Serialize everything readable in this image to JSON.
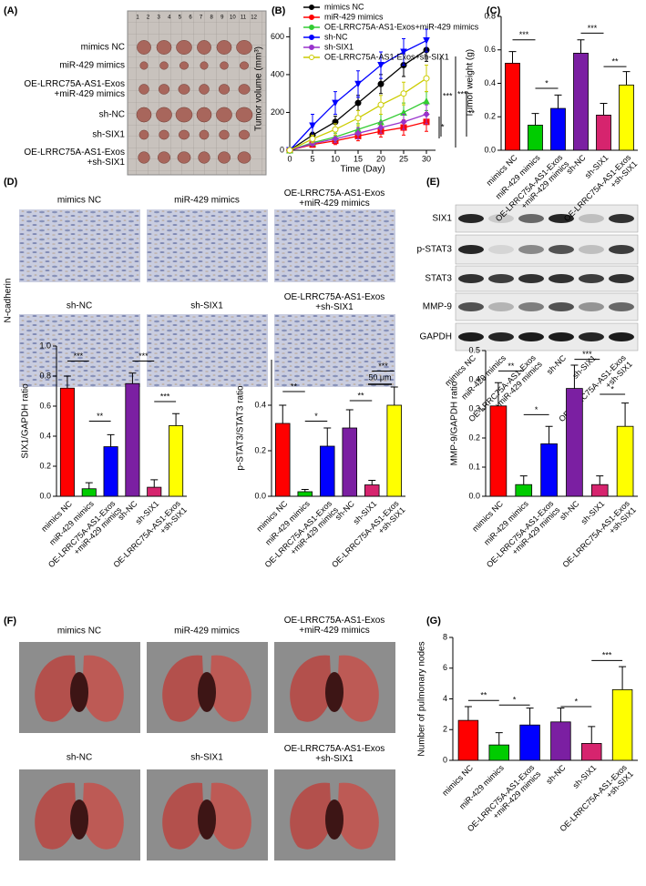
{
  "panel_labels": [
    "(A)",
    "(B)",
    "(C)",
    "(D)",
    "(E)",
    "(F)",
    "(G)"
  ],
  "panel_a": {
    "ruler": [
      1,
      2,
      3,
      4,
      5,
      6,
      7,
      8,
      9,
      10,
      11,
      12
    ],
    "rows": [
      "mimics NC",
      "miR-429 mimics",
      "OE-LRRC75A-AS1-Exos\n+miR-429 mimics",
      "sh-NC",
      "sh-SIX1",
      "OE-LRRC75A-AS1-Exos\n+sh-SIX1"
    ]
  },
  "panel_d": {
    "stain": "N-cadherin",
    "captions": [
      "mimics NC",
      "miR-429 mimics",
      "OE-LRRC75A-AS1-Exos\n+miR-429 mimics",
      "sh-NC",
      "sh-SIX1",
      "OE-LRRC75A-AS1-Exos\n+sh-SIX1"
    ],
    "scale_bar": "50 μm"
  },
  "panel_e": {
    "proteins": [
      "SIX1",
      "p-STAT3",
      "STAT3",
      "MMP-9",
      "GAPDH"
    ],
    "lanes": [
      "mimics NC",
      "miR-429 mimics",
      "OE-LRRC75A-AS1-Exos\n+miR-429 mimics",
      "sh-NC",
      "sh-SIX1",
      "OE-LRRC75A-AS1-Exos\n+sh-SIX1"
    ]
  },
  "panel_f": {
    "captions": [
      "mimics NC",
      "miR-429 mimics",
      "OE-LRRC75A-AS1-Exos\n+miR-429 mimics",
      "sh-NC",
      "sh-SIX1",
      "OE-LRRC75A-AS1-Exos\n+sh-SIX1"
    ]
  },
  "chart_data": [
    {
      "type": "line",
      "xlabel": "Time (Day)",
      "ylabel": "Tumor volume (mm³)",
      "x": [
        0,
        5,
        10,
        15,
        20,
        25,
        30
      ],
      "xlim": [
        0,
        32
      ],
      "xticks": [
        0,
        5,
        10,
        15,
        20,
        25,
        30
      ],
      "ylim": [
        0,
        650
      ],
      "yticks": [
        0,
        200,
        400,
        600
      ],
      "series": [
        {
          "name": "mimics NC",
          "color": "#000000",
          "marker": "circle",
          "values": [
            0,
            80,
            150,
            250,
            350,
            450,
            530
          ],
          "errors": [
            0,
            15,
            30,
            40,
            50,
            60,
            60
          ]
        },
        {
          "name": "miR-429 mimics",
          "color": "#ff0000",
          "marker": "square",
          "values": [
            0,
            30,
            50,
            75,
            100,
            120,
            150
          ],
          "errors": [
            0,
            10,
            20,
            25,
            30,
            40,
            50
          ]
        },
        {
          "name": "OE-LRRC75A-AS1-Exos+miR-429 mimics",
          "color": "#33cc33",
          "marker": "triangle",
          "values": [
            0,
            40,
            70,
            110,
            150,
            200,
            260
          ],
          "errors": [
            0,
            10,
            20,
            30,
            40,
            50,
            50
          ]
        },
        {
          "name": "sh-NC",
          "color": "#0000ff",
          "marker": "triangle-down",
          "values": [
            0,
            130,
            250,
            350,
            450,
            520,
            580
          ],
          "errors": [
            0,
            60,
            60,
            70,
            70,
            70,
            60
          ]
        },
        {
          "name": "sh-SIX1",
          "color": "#9933cc",
          "marker": "diamond",
          "values": [
            0,
            35,
            60,
            90,
            120,
            150,
            190
          ],
          "errors": [
            0,
            10,
            20,
            30,
            30,
            40,
            50
          ]
        },
        {
          "name": "OE-LRRC75A-AS1-Exos+sh-SIX1",
          "color": "#cccc00",
          "marker": "circle-open",
          "values": [
            0,
            60,
            110,
            170,
            240,
            300,
            380
          ],
          "errors": [
            0,
            20,
            30,
            40,
            50,
            60,
            70
          ]
        }
      ],
      "annotations": [
        "***",
        "***",
        "**",
        "*"
      ]
    },
    {
      "type": "bar",
      "ylabel": "Tumor weight (g)",
      "categories": [
        "mimics NC",
        "miR-429 mimics",
        "OE-LRRC75A-AS1-Exos\n+miR-429 mimics",
        "sh-NC",
        "sh-SIX1",
        "OE-LRRC75A-AS1-Exos\n+sh-SIX1"
      ],
      "values": [
        0.52,
        0.15,
        0.25,
        0.58,
        0.21,
        0.39
      ],
      "errors": [
        0.07,
        0.07,
        0.08,
        0.08,
        0.07,
        0.08
      ],
      "colors": [
        "#ff0000",
        "#00cc00",
        "#0000ff",
        "#7b1fa2",
        "#d6246e",
        "#ffff00"
      ],
      "ylim": [
        0,
        0.8
      ],
      "yticks": [
        {
          "value": 0,
          "label": "0.0"
        },
        0.2,
        0.4,
        0.6,
        0.8
      ],
      "annotations": [
        "***",
        "*",
        "***",
        "**"
      ]
    },
    {
      "type": "bar",
      "ylabel": "SIX1/GAPDH ratio",
      "categories": [
        "mimics NC",
        "miR-429 mimics",
        "OE-LRRC75A-AS1-Exos\n+miR-429 mimics",
        "sh-NC",
        "sh-SIX1",
        "OE-LRRC75A-AS1-Exos\n+sh-SIX1"
      ],
      "values": [
        0.72,
        0.05,
        0.33,
        0.75,
        0.06,
        0.47
      ],
      "errors": [
        0.08,
        0.04,
        0.08,
        0.07,
        0.05,
        0.08
      ],
      "colors": [
        "#ff0000",
        "#00cc00",
        "#0000ff",
        "#7b1fa2",
        "#d6246e",
        "#ffff00"
      ],
      "ylim": [
        0,
        1.0
      ],
      "yticks": [
        {
          "value": 0,
          "label": "0.0"
        },
        0.2,
        0.4,
        0.6,
        0.8,
        {
          "value": 1,
          "label": "1.0"
        }
      ],
      "annotations": [
        "***",
        "**",
        "***",
        "***"
      ]
    },
    {
      "type": "bar",
      "ylabel": "p-STAT3/STAT3 ratio",
      "categories": [
        "mimics NC",
        "miR-429 mimics",
        "OE-LRRC75A-AS1-Exos\n+miR-429 mimics",
        "sh-NC",
        "sh-SIX1",
        "OE-LRRC75A-AS1-Exos\n+sh-SIX1"
      ],
      "values": [
        0.32,
        0.02,
        0.22,
        0.3,
        0.05,
        0.4
      ],
      "errors": [
        0.08,
        0.01,
        0.08,
        0.08,
        0.02,
        0.08
      ],
      "colors": [
        "#ff0000",
        "#00cc00",
        "#0000ff",
        "#7b1fa2",
        "#d6246e",
        "#ffff00"
      ],
      "ylim": [
        0,
        0.6
      ],
      "yticks": [
        {
          "value": 0,
          "label": "0.0"
        },
        0.2,
        0.4
      ],
      "annotations": [
        "**",
        "*",
        "**",
        "***"
      ]
    },
    {
      "type": "bar",
      "ylabel": "MMP-9/GAPDH ratio",
      "categories": [
        "mimics NC",
        "miR-429 mimics",
        "OE-LRRC75A-AS1-Exos\n+miR-429 mimics",
        "sh-NC",
        "sh-SIX1",
        "OE-LRRC75A-AS1-Exos\n+sh-SIX1"
      ],
      "values": [
        0.31,
        0.04,
        0.18,
        0.37,
        0.04,
        0.24
      ],
      "errors": [
        0.08,
        0.03,
        0.06,
        0.08,
        0.03,
        0.08
      ],
      "colors": [
        "#ff0000",
        "#00cc00",
        "#0000ff",
        "#7b1fa2",
        "#d6246e",
        "#ffff00"
      ],
      "ylim": [
        0,
        0.5
      ],
      "yticks": [
        {
          "value": 0,
          "label": "0.0"
        },
        0.1,
        0.2,
        0.3,
        0.4,
        0.5
      ],
      "annotations": [
        "**",
        "*",
        "***",
        "*"
      ]
    },
    {
      "type": "bar",
      "ylabel": "Number of pulmonary nodes",
      "categories": [
        "mimics NC",
        "miR-429 mimics",
        "OE-LRRC75A-AS1-Exos\n+miR-429 mimics",
        "sh-NC",
        "sh-SIX1",
        "OE-LRRC75A-AS1-Exos\n+sh-SIX1"
      ],
      "values": [
        2.6,
        1.0,
        2.3,
        2.5,
        1.1,
        4.6
      ],
      "errors": [
        0.9,
        0.8,
        1.1,
        0.9,
        1.1,
        1.5
      ],
      "colors": [
        "#ff0000",
        "#00cc00",
        "#0000ff",
        "#7b1fa2",
        "#d6246e",
        "#ffff00"
      ],
      "ylim": [
        0,
        8
      ],
      "yticks": [
        0,
        2,
        4,
        6,
        8
      ],
      "annotations": [
        "**",
        "*",
        "*",
        "***"
      ]
    }
  ]
}
